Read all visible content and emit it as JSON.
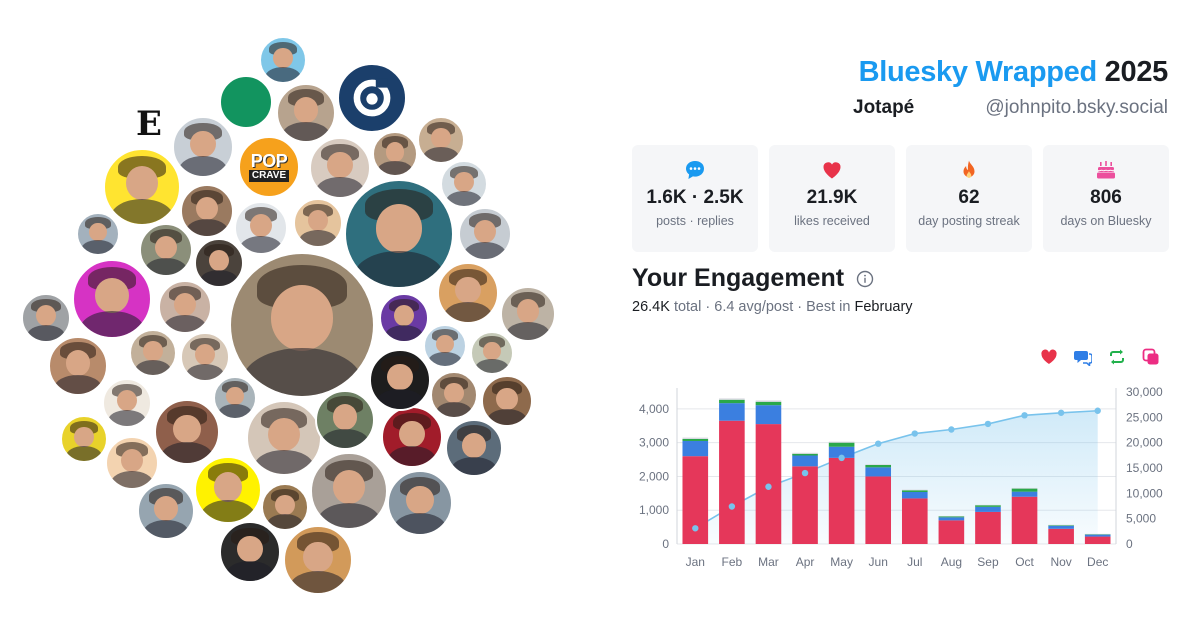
{
  "header": {
    "title_brand": "Bluesky Wrapped",
    "title_year": "2025",
    "display_name": "Jotapé",
    "handle": "@johnpito.bsky.social"
  },
  "stats": [
    {
      "icon": "speech-bubble-icon",
      "value": "1.6K · 2.5K",
      "label": "posts · replies",
      "color": "#1a9af0"
    },
    {
      "icon": "heart-icon",
      "value": "21.9K",
      "label": "likes received",
      "color": "#e8334a"
    },
    {
      "icon": "flame-icon",
      "value": "62",
      "label": "day posting streak",
      "color": "#f26522"
    },
    {
      "icon": "cake-icon",
      "value": "806",
      "label": "days on Bluesky",
      "color": "#ec4f9d"
    }
  ],
  "engagement": {
    "title": "Your Engagement",
    "total": "26.4K",
    "total_word": "total",
    "avg": "6.4 avg/post",
    "best_prefix": "Best in",
    "best_month": "February",
    "legend": [
      {
        "icon": "heart-icon",
        "color": "#e8334a"
      },
      {
        "icon": "reply-icon",
        "color": "#2f7ee6"
      },
      {
        "icon": "repost-icon",
        "color": "#22b14c"
      },
      {
        "icon": "quote-icon",
        "color": "#ec2d83"
      }
    ]
  },
  "avatar_logos": {
    "left_letter": "E",
    "pop_top": "POP",
    "pop_bottom": "CRAVE"
  },
  "chart_data": {
    "type": "bar",
    "categories": [
      "Jan",
      "Feb",
      "Mar",
      "Apr",
      "May",
      "Jun",
      "Jul",
      "Aug",
      "Sep",
      "Oct",
      "Nov",
      "Dec"
    ],
    "series": [
      {
        "values": [
          2600,
          3650,
          3550,
          2300,
          2550,
          2000,
          1350,
          700,
          950,
          1400,
          450,
          220
        ],
        "color": "#e5375a"
      },
      {
        "values": [
          450,
          520,
          560,
          320,
          330,
          270,
          190,
          90,
          150,
          150,
          90,
          60
        ],
        "color": "#3b7fe0"
      },
      {
        "values": [
          60,
          100,
          100,
          50,
          120,
          70,
          50,
          30,
          50,
          90,
          20,
          10
        ],
        "color": "#2aa84a"
      },
      {
        "values": [
          40,
          40,
          40,
          30,
          30,
          20,
          20,
          10,
          10,
          20,
          10,
          10
        ],
        "color": "#d8d8e0"
      },
      {
        "values": [
          3100,
          7400,
          11300,
          14000,
          17000,
          19800,
          21800,
          22600,
          23700,
          25400,
          25900,
          26300
        ],
        "color": "#79c3ec",
        "type": "area"
      }
    ],
    "ylim": [
      0,
      4500
    ],
    "y_ticks": [
      "0",
      "1,000",
      "2,000",
      "3,000",
      "4,000"
    ],
    "y2lim": [
      0,
      30000
    ],
    "y2_ticks": [
      "0",
      "5,000",
      "10,000",
      "15,000",
      "20,000",
      "25,000",
      "30,000"
    ],
    "grid": true
  }
}
